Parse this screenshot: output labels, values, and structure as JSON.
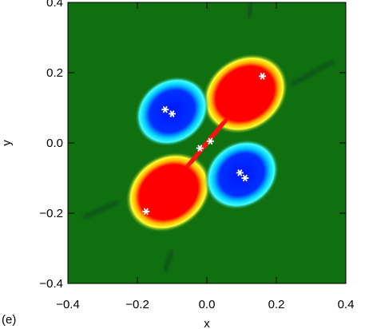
{
  "chart_data": {
    "type": "heatmap",
    "panel_label": "(e)",
    "xlabel": "x",
    "ylabel": "y",
    "xlim": [
      -0.4,
      0.4
    ],
    "ylim": [
      -0.4,
      0.4
    ],
    "x_ticks": [
      {
        "value": -0.4,
        "label": "−0.4"
      },
      {
        "value": -0.2,
        "label": "−0.2"
      },
      {
        "value": 0.0,
        "label": "0.0"
      },
      {
        "value": 0.2,
        "label": "0.2"
      },
      {
        "value": 0.4,
        "label": "0.4"
      }
    ],
    "y_ticks": [
      {
        "value": -0.4,
        "label": "−0.4"
      },
      {
        "value": -0.2,
        "label": "−0.2"
      },
      {
        "value": 0.0,
        "label": "0.0"
      },
      {
        "value": 0.2,
        "label": "0.2"
      },
      {
        "value": 0.4,
        "label": "0.4"
      }
    ],
    "background_color": "#107010",
    "colors": {
      "positive": "#ff0000",
      "negative": "#0018ff",
      "background": "#107010",
      "markers": "#ffffff"
    },
    "lobes": [
      {
        "sign": "positive",
        "cx": 0.11,
        "cy": 0.14,
        "rx": 0.105,
        "ry": 0.085
      },
      {
        "sign": "positive",
        "cx": -0.11,
        "cy": -0.14,
        "rx": 0.105,
        "ry": 0.085
      },
      {
        "sign": "negative",
        "cx": -0.1,
        "cy": 0.09,
        "rx": 0.09,
        "ry": 0.075
      },
      {
        "sign": "negative",
        "cx": 0.1,
        "cy": -0.09,
        "rx": 0.09,
        "ry": 0.075
      }
    ],
    "central_strips": [
      {
        "x1": -0.045,
        "y1": -0.055,
        "x2": 0.055,
        "y2": 0.065
      },
      {
        "x1": -0.055,
        "y1": -0.065,
        "x2": 0.045,
        "y2": 0.055
      }
    ],
    "filaments": [
      {
        "x1": 0.12,
        "y1": 0.36,
        "x2": 0.13,
        "y2": 0.4
      },
      {
        "x1": 0.25,
        "y1": 0.17,
        "x2": 0.36,
        "y2": 0.23
      },
      {
        "x1": -0.35,
        "y1": -0.21,
        "x2": -0.26,
        "y2": -0.17
      },
      {
        "x1": -0.12,
        "y1": -0.36,
        "x2": -0.1,
        "y2": -0.31
      }
    ],
    "markers": [
      {
        "x": 0.16,
        "y": 0.19
      },
      {
        "x": -0.12,
        "y": 0.095
      },
      {
        "x": -0.1,
        "y": 0.083
      },
      {
        "x": 0.01,
        "y": 0.005
      },
      {
        "x": -0.02,
        "y": -0.015
      },
      {
        "x": 0.095,
        "y": -0.085
      },
      {
        "x": 0.11,
        "y": -0.1
      },
      {
        "x": -0.175,
        "y": -0.195
      }
    ]
  }
}
